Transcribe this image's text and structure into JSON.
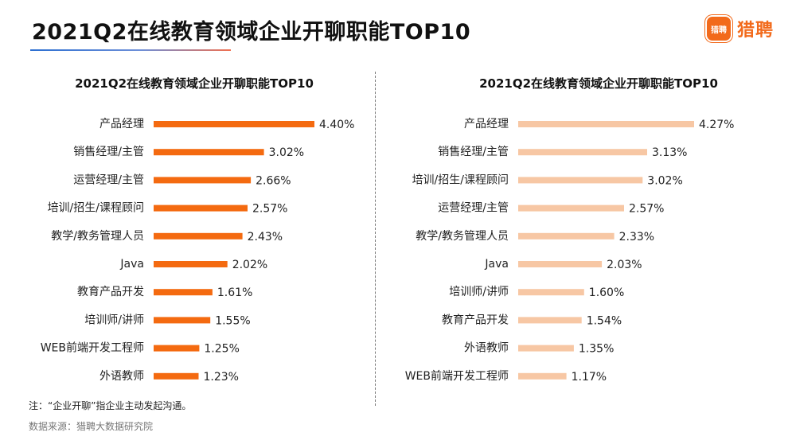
{
  "header": {
    "title": "2021Q2在线教育领域企业开聊职能TOP10",
    "logo_badge": "猎聘",
    "logo_text": "猎聘"
  },
  "chart_data": [
    {
      "type": "bar",
      "orientation": "horizontal",
      "title": "2021Q2在线教育领域企业开聊职能TOP10",
      "categories": [
        "产品经理",
        "销售经理/主管",
        "运营经理/主管",
        "培训/招生/课程顾问",
        "教学/教务管理人员",
        "Java",
        "教育产品开发",
        "培训师/讲师",
        "WEB前端开发工程师",
        "外语教师"
      ],
      "values": [
        4.4,
        3.02,
        2.66,
        2.57,
        2.43,
        2.02,
        1.61,
        1.55,
        1.25,
        1.23
      ],
      "value_labels": [
        "4.40%",
        "3.02%",
        "2.66%",
        "2.57%",
        "2.43%",
        "2.02%",
        "1.61%",
        "1.55%",
        "1.25%",
        "1.23%"
      ],
      "unit": "%",
      "xlim": [
        0,
        4.4
      ],
      "color": "#f46a10",
      "grid": false
    },
    {
      "type": "bar",
      "orientation": "horizontal",
      "title": "2021Q2在线教育领域企业开聊职能TOP10",
      "categories": [
        "产品经理",
        "销售经理/主管",
        "培训/招生/课程顾问",
        "运营经理/主管",
        "教学/教务管理人员",
        "Java",
        "培训师/讲师",
        "教育产品开发",
        "外语教师",
        "WEB前端开发工程师"
      ],
      "values": [
        4.27,
        3.13,
        3.02,
        2.57,
        2.33,
        2.03,
        1.6,
        1.54,
        1.35,
        1.17
      ],
      "value_labels": [
        "4.27%",
        "3.13%",
        "3.02%",
        "2.57%",
        "2.33%",
        "2.03%",
        "1.60%",
        "1.54%",
        "1.35%",
        "1.17%"
      ],
      "unit": "%",
      "xlim": [
        0,
        4.27
      ],
      "color": "#f7c7a4",
      "grid": false
    }
  ],
  "footer": {
    "note": "注：“企业开聊”指企业主动发起沟通。",
    "source": "数据来源：猎聘大数据研究院"
  }
}
